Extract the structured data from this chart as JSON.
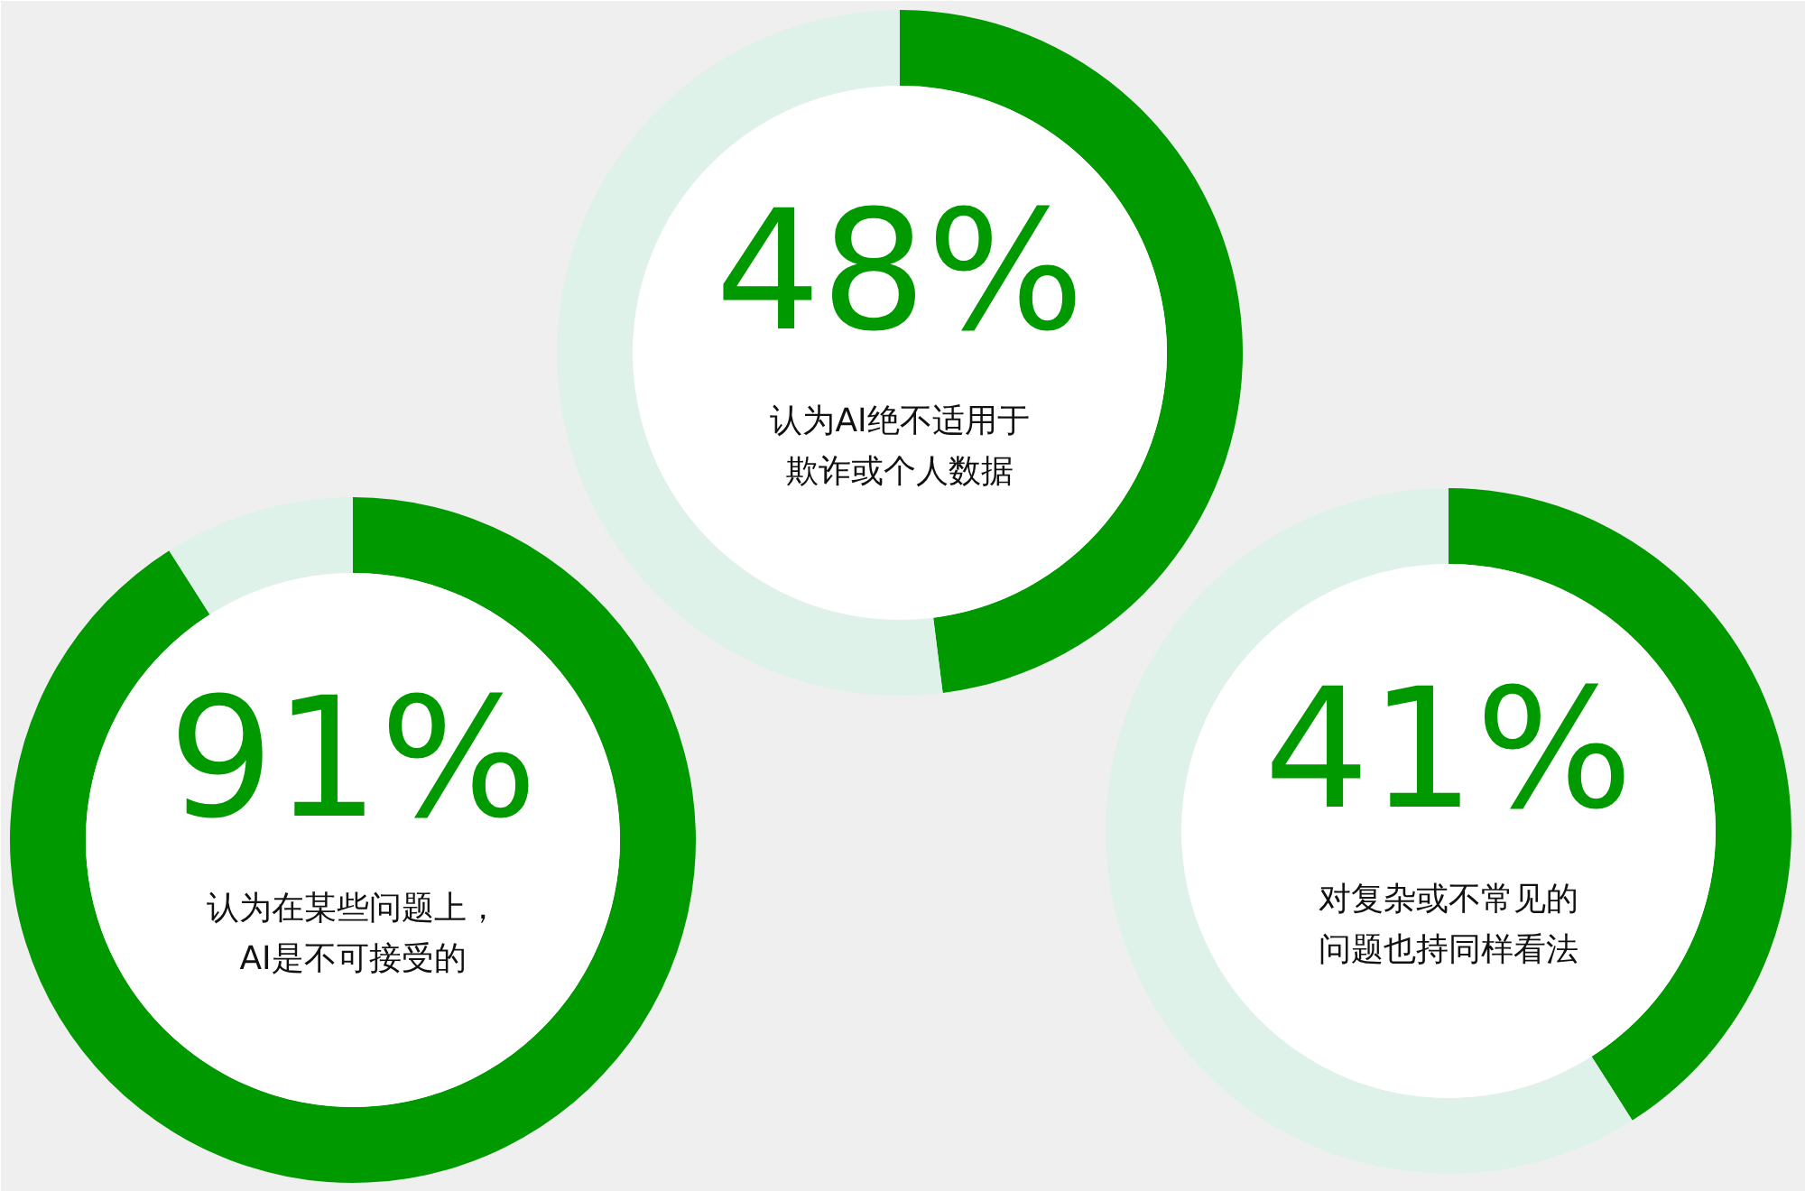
{
  "chart_data": [
    {
      "type": "donut",
      "categories": [
        null,
        null
      ],
      "values": [
        48,
        52
      ],
      "colors": [
        "#009900",
        "#dff2ea"
      ],
      "value_labels": [
        "48%",
        null
      ],
      "annotations": [
        "认为AI绝不适用于",
        "欺诈或个人数据"
      ]
    },
    {
      "type": "donut",
      "categories": [
        null,
        null
      ],
      "values": [
        91,
        9
      ],
      "colors": [
        "#009900",
        "#dff2ea"
      ],
      "value_labels": [
        "91%",
        null
      ],
      "annotations": [
        "认为在某些问题上，",
        "AI是不可接受的"
      ]
    },
    {
      "type": "donut",
      "categories": [
        null,
        null
      ],
      "values": [
        41,
        59
      ],
      "colors": [
        "#009900",
        "#dff2ea"
      ],
      "value_labels": [
        "41%",
        null
      ],
      "annotations": [
        "对复杂或不常见的",
        "问题也持同样看法"
      ]
    }
  ]
}
